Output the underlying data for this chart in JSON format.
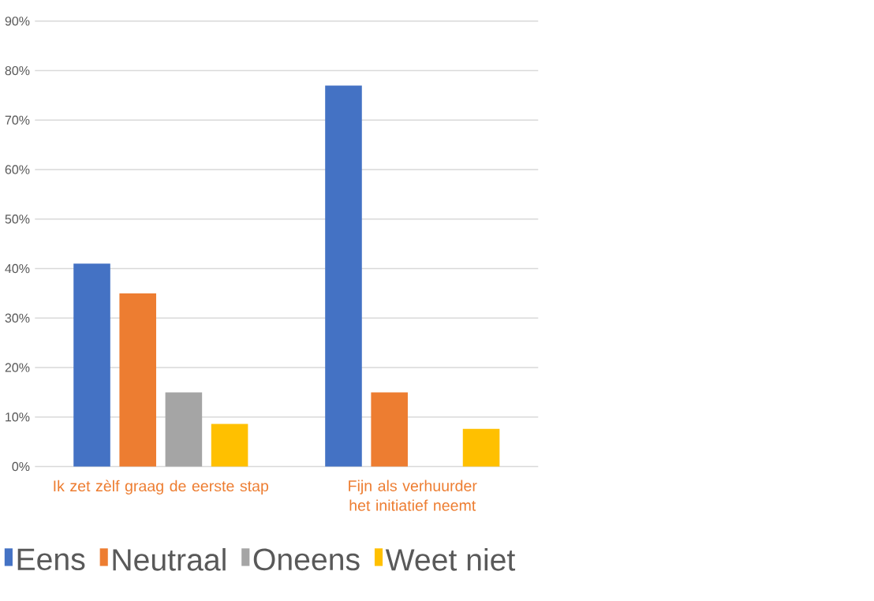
{
  "chart_data": {
    "type": "bar",
    "categories": [
      "Ik zet zèlf graag de eerste stap",
      "Fijn als verhuurder het initiatief neemt"
    ],
    "series": [
      {
        "name": "Eens",
        "color": "#4472c4",
        "values": [
          41,
          77
        ]
      },
      {
        "name": "Neutraal",
        "color": "#ed7d31",
        "values": [
          35,
          15
        ]
      },
      {
        "name": "Oneens",
        "color": "#a5a5a5",
        "values": [
          15,
          0
        ]
      },
      {
        "name": "Weet niet",
        "color": "#ffc000",
        "values": [
          8.6,
          7.6
        ]
      }
    ],
    "ylim": [
      0,
      90
    ],
    "yticks": [
      {
        "value": 0,
        "label": "0%"
      },
      {
        "value": 10,
        "label": "10%"
      },
      {
        "value": 20,
        "label": "20%"
      },
      {
        "value": 30,
        "label": "30%"
      },
      {
        "value": 40,
        "label": "40%"
      },
      {
        "value": 50,
        "label": "50%"
      },
      {
        "value": 60,
        "label": "60%"
      },
      {
        "value": 70,
        "label": "70%"
      },
      {
        "value": 80,
        "label": "80%"
      },
      {
        "value": 90,
        "label": "90%"
      }
    ],
    "grid": "y",
    "legend": "bottom"
  }
}
